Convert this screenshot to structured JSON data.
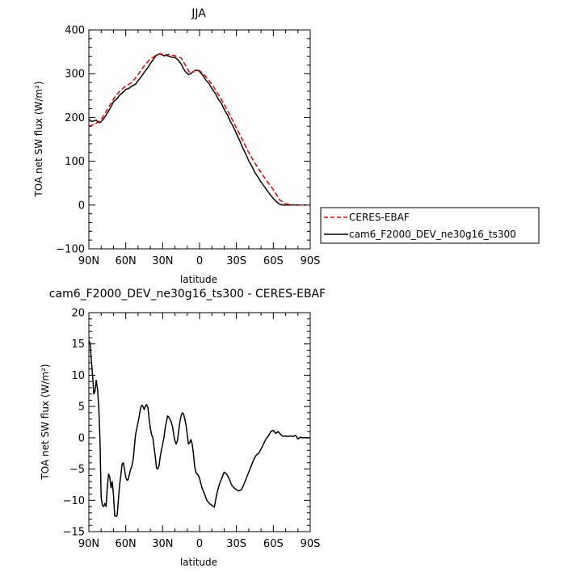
{
  "figure": {
    "panel1_title": "JJA",
    "panel2_title": "cam6_F2000_DEV_ne30g16_ts300 - CERES-EBAF"
  },
  "legend": {
    "entries": [
      {
        "label": "CERES-EBAF",
        "color": "#e00000",
        "dash": "dashed"
      },
      {
        "label": "cam6_F2000_DEV_ne30g16_ts300",
        "color": "#000000",
        "dash": "solid"
      }
    ]
  },
  "chart_data": [
    {
      "type": "line",
      "title": "JJA",
      "xlabel": "latitude",
      "ylabel": "TOA net SW flux (W/m²)",
      "xlim": [
        90,
        -90
      ],
      "ylim": [
        -100,
        400
      ],
      "x_ticks": [
        90,
        60,
        30,
        0,
        -30,
        -60,
        -90
      ],
      "x_tick_labels": [
        "90N",
        "60N",
        "30N",
        "0",
        "30S",
        "60S",
        "90S"
      ],
      "y_ticks": [
        -100,
        0,
        100,
        200,
        300,
        400
      ],
      "y_tick_labels": [
        "−100",
        "0",
        "100",
        "200",
        "300",
        "400"
      ],
      "series": [
        {
          "name": "CERES-EBAF",
          "color": "#e00000",
          "dash": "dashed",
          "x": [
            90,
            85,
            80,
            75,
            70,
            65,
            60,
            55,
            50,
            45,
            40,
            35,
            32,
            30,
            27,
            25,
            20,
            15,
            10,
            8,
            5,
            3,
            0,
            -5,
            -10,
            -15,
            -20,
            -25,
            -30,
            -35,
            -40,
            -45,
            -50,
            -55,
            -60,
            -62,
            -65,
            -70,
            -75,
            -80,
            -85,
            -90
          ],
          "y": [
            180,
            185,
            195,
            218,
            242,
            260,
            272,
            280,
            298,
            318,
            334,
            342,
            346,
            344,
            343,
            344,
            341,
            336,
            312,
            302,
            304,
            309,
            307,
            294,
            276,
            254,
            230,
            204,
            176,
            148,
            120,
            96,
            74,
            54,
            35,
            26,
            12,
            3,
            1,
            0,
            0,
            0
          ]
        },
        {
          "name": "cam6_F2000_DEV_ne30g16_ts300",
          "color": "#000000",
          "dash": "solid",
          "x": [
            90,
            88,
            86,
            84,
            82,
            80,
            78,
            75,
            72,
            70,
            67,
            65,
            62,
            60,
            57,
            55,
            52,
            50,
            47,
            45,
            42,
            40,
            37,
            35,
            33,
            31,
            29,
            27,
            25,
            22,
            20,
            17,
            15,
            13,
            11,
            9,
            7,
            5,
            3,
            1,
            0,
            -3,
            -5,
            -8,
            -10,
            -13,
            -15,
            -18,
            -20,
            -23,
            -25,
            -28,
            -30,
            -33,
            -35,
            -38,
            -40,
            -43,
            -45,
            -48,
            -50,
            -53,
            -55,
            -58,
            -60,
            -62,
            -64,
            -66,
            -68,
            -70,
            -72,
            -75,
            -78,
            -80,
            -83,
            -85,
            -88,
            -90
          ],
          "y": [
            196,
            191,
            192,
            194,
            188,
            190,
            197,
            210,
            224,
            236,
            243,
            251,
            258,
            264,
            267,
            272,
            276,
            284,
            295,
            303,
            314,
            323,
            335,
            342,
            345,
            344,
            341,
            342,
            340,
            337,
            337,
            330,
            322,
            311,
            303,
            298,
            300,
            305,
            308,
            307,
            305,
            295,
            286,
            276,
            266,
            254,
            243,
            231,
            219,
            204,
            191,
            176,
            163,
            145,
            131,
            114,
            101,
            86,
            74,
            62,
            52,
            41,
            33,
            22,
            15,
            9,
            4,
            1,
            0,
            0,
            0,
            0,
            0,
            0,
            0,
            0,
            0,
            0
          ]
        }
      ]
    },
    {
      "type": "line",
      "title": "cam6_F2000_DEV_ne30g16_ts300 - CERES-EBAF",
      "xlabel": "latitude",
      "ylabel": "TOA net SW flux (W/m²)",
      "xlim": [
        90,
        -90
      ],
      "ylim": [
        -15,
        20
      ],
      "x_ticks": [
        90,
        60,
        30,
        0,
        -30,
        -60,
        -90
      ],
      "x_tick_labels": [
        "90N",
        "60N",
        "30N",
        "0",
        "30S",
        "60S",
        "90S"
      ],
      "y_ticks": [
        -15,
        -10,
        -5,
        0,
        5,
        10,
        15,
        20
      ],
      "y_tick_labels": [
        "−15",
        "−10",
        "−5",
        "0",
        "5",
        "10",
        "15",
        "20"
      ],
      "series": [
        {
          "color": "#000000",
          "dash": "solid",
          "x": [
            90,
            89,
            88,
            87,
            86,
            85,
            84,
            83,
            82,
            81,
            80,
            79,
            78,
            77,
            76,
            75,
            74,
            73,
            72,
            71,
            70,
            69,
            68,
            67,
            66,
            65,
            64,
            63,
            62,
            61,
            60,
            59,
            58,
            57,
            56,
            55,
            54,
            53,
            52,
            51,
            50,
            49,
            48,
            47,
            46,
            45,
            44,
            43,
            42,
            41,
            40,
            39,
            38,
            37,
            36,
            35,
            34,
            33,
            32,
            31,
            30,
            29,
            28,
            27,
            26,
            25,
            24,
            23,
            22,
            21,
            20,
            19,
            18,
            17,
            16,
            15,
            14,
            13,
            12,
            11,
            10,
            9,
            8,
            7,
            6,
            5,
            4,
            3,
            2,
            1,
            0,
            -2,
            -4,
            -6,
            -8,
            -10,
            -12,
            -14,
            -16,
            -18,
            -20,
            -22,
            -24,
            -26,
            -28,
            -30,
            -32,
            -34,
            -36,
            -38,
            -40,
            -42,
            -44,
            -46,
            -48,
            -50,
            -52,
            -54,
            -56,
            -58,
            -60,
            -62,
            -64,
            -66,
            -68,
            -70,
            -72,
            -74,
            -76,
            -78,
            -80,
            -82,
            -84,
            -86,
            -88,
            -90
          ],
          "y": [
            15.5,
            15.2,
            12.5,
            10,
            7,
            7.5,
            9.2,
            7.8,
            5,
            0,
            -9.5,
            -10.8,
            -11,
            -10.5,
            -11,
            -8,
            -5.8,
            -6.3,
            -8,
            -7,
            -9,
            -12.5,
            -12.6,
            -12.4,
            -10,
            -7.5,
            -6,
            -4.2,
            -4,
            -5,
            -6.3,
            -6.8,
            -6.7,
            -5.8,
            -5,
            -4.5,
            -3.5,
            -1.5,
            0.5,
            1.5,
            2.5,
            3.5,
            4.7,
            5.2,
            5,
            4.5,
            5.1,
            5.3,
            4.8,
            3,
            1.5,
            0.5,
            0,
            -1.5,
            -3,
            -4.8,
            -5,
            -4.5,
            -3,
            -2,
            -1,
            0,
            1.5,
            2.5,
            3.5,
            3.3,
            2.9,
            2.5,
            1.8,
            0.5,
            -0.5,
            -1,
            -0.5,
            1,
            2.5,
            3.5,
            4,
            3.8,
            3,
            2,
            0.5,
            -1,
            -0.8,
            -0.3,
            -1,
            -2.5,
            -4.5,
            -5.5,
            -5.8,
            -6,
            -6.5,
            -8,
            -9,
            -10,
            -10.5,
            -10.8,
            -11.1,
            -9,
            -7.5,
            -6.5,
            -5.5,
            -5.8,
            -6.5,
            -7.5,
            -8,
            -8.3,
            -8.5,
            -8.3,
            -7.5,
            -6.5,
            -5.5,
            -4.5,
            -3.5,
            -2.8,
            -2.5,
            -1.8,
            -1,
            -0.2,
            0.3,
            1.0,
            1.2,
            0.7,
            1.0,
            0.5,
            0.2,
            0.3,
            0.2,
            0.3,
            0.2,
            0.4,
            -0.2,
            0.1,
            0.0,
            0.0,
            0.0,
            0.0
          ]
        }
      ]
    }
  ]
}
